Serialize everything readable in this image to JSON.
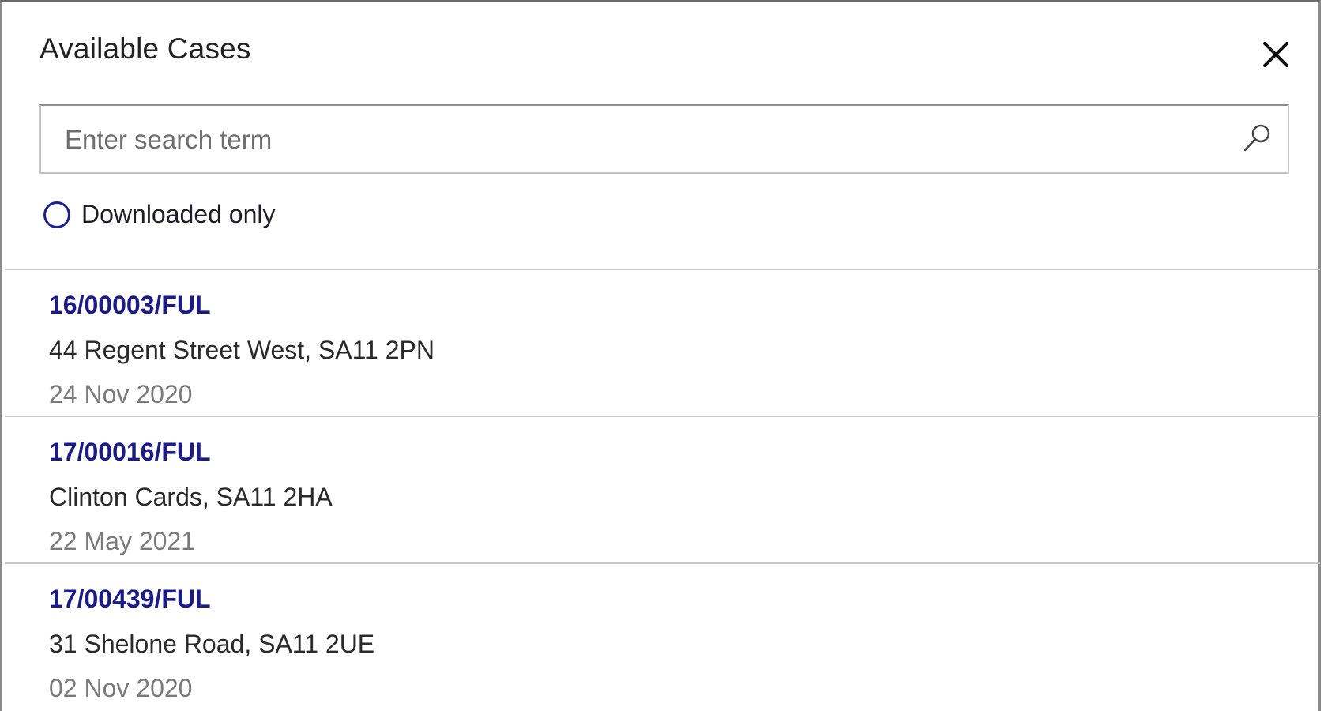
{
  "dialog": {
    "title": "Available Cases",
    "close_icon": "close-icon",
    "search": {
      "placeholder": "Enter search term",
      "value": "",
      "icon": "search-icon"
    },
    "filter": {
      "label": "Downloaded only",
      "checked": false
    },
    "accent_color": "#1a1a8c"
  },
  "cases": [
    {
      "id": "16/00003/FUL",
      "address": "44 Regent Street West, SA11 2PN",
      "date": "24 Nov 2020"
    },
    {
      "id": "17/00016/FUL",
      "address": "Clinton Cards, SA11 2HA",
      "date": "22 May 2021"
    },
    {
      "id": "17/00439/FUL",
      "address": "31 Shelone Road, SA11 2UE",
      "date": "02 Nov 2020"
    }
  ]
}
